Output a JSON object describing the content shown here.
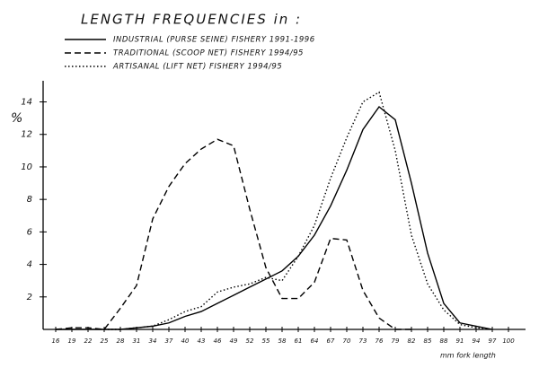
{
  "chart_data": {
    "type": "line",
    "title": "LENGTH FREQUENCIES in :",
    "y_label": "%",
    "x_label": "mm fork length",
    "categories": [
      "16",
      "19",
      "22",
      "25",
      "28",
      "31",
      "34",
      "37",
      "40",
      "43",
      "46",
      "49",
      "52",
      "55",
      "58",
      "61",
      "64",
      "67",
      "70",
      "73",
      "76",
      "79",
      "82",
      "85",
      "88",
      "91",
      "94",
      "97",
      "100"
    ],
    "series": [
      {
        "name": "INDUSTRIAL (PURSE SEINE) FISHERY 1991-1996",
        "color": "#000000",
        "dash": "solid",
        "values": [
          0,
          0,
          0,
          0,
          0,
          0.1,
          0.2,
          0.4,
          0.8,
          1.1,
          1.6,
          2.1,
          2.6,
          3.1,
          3.6,
          4.5,
          5.8,
          7.6,
          9.8,
          12.3,
          13.7,
          12.9,
          9.0,
          4.7,
          1.6,
          0.4,
          0.2,
          0,
          null
        ]
      },
      {
        "name": "TRADITIONAL (SCOOP NET) FISHERY 1994/95",
        "color": "#000000",
        "dash": "dashed",
        "values": [
          0,
          0.1,
          0.1,
          0,
          1.3,
          2.7,
          6.8,
          8.8,
          10.2,
          11.1,
          11.7,
          11.3,
          7.4,
          3.8,
          1.9,
          1.9,
          2.9,
          5.6,
          5.5,
          2.4,
          0.7,
          0,
          0,
          null,
          null,
          null,
          null,
          null,
          null
        ]
      },
      {
        "name": "ARTISANAL (LIFT NET) FISHERY 1994/95",
        "color": "#000000",
        "dash": "dotted",
        "values": [
          null,
          null,
          null,
          0,
          0,
          0.1,
          0.2,
          0.6,
          1.1,
          1.4,
          2.3,
          2.6,
          2.8,
          3.2,
          3.0,
          4.5,
          6.4,
          9.3,
          11.8,
          14.0,
          14.6,
          11.0,
          5.8,
          2.8,
          1.2,
          0.3,
          0.1,
          0,
          null
        ]
      }
    ],
    "ylim": [
      0,
      15.3
    ],
    "yticks": [
      2,
      4,
      6,
      8,
      10,
      12,
      14
    ],
    "grid": false
  }
}
